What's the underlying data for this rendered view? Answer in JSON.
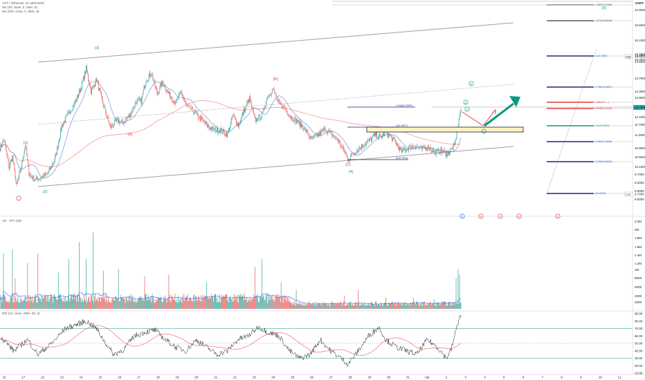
{
  "header": {
    "symbol_line": "APT / TetherUS, 1h, BINANCE",
    "ma1": "MA (20, close, 0, SMA, 9)",
    "ma2": "MA (200, close, 0, SMA, 9)",
    "currency": "USDT",
    "vol_label": "Vol · APT (20)",
    "rsi_label": "RSI (14, close, SMA, 50, 2)"
  },
  "price_axis": {
    "ticks": [
      "16.9000",
      "16.5000",
      "16.1000",
      "15.7000",
      "15.3000",
      "14.9000",
      "14.5000",
      "13.7000",
      "13.3000",
      "12.9000",
      "12.1000",
      "11.7000",
      "11.3000",
      "10.9000",
      "10.5000",
      "10.1000",
      "9.7000",
      "9.3000",
      "8.9000",
      "8.5000"
    ],
    "high_tag": "High",
    "high_value": "14.6237",
    "low_tag": "Low",
    "low_value": "9.7000",
    "last_value": "12.7000"
  },
  "volume_axis": {
    "ticks": [
      "2.2M",
      "2M",
      "1.8M",
      "1.6M",
      "1.4M",
      "1.2M",
      "1M",
      "800K",
      "600K",
      "400K",
      "200K"
    ]
  },
  "rsi_axis": {
    "ticks": [
      "90.00",
      "80.00",
      "70.00",
      "60.00",
      "50.00",
      "40.00",
      "30.00",
      "20.00",
      "10.00"
    ]
  },
  "time_axis": {
    "labels": [
      "16",
      "17",
      "12",
      "13",
      "14",
      "15",
      "16",
      "17",
      "18",
      "19",
      "20",
      "21",
      "22",
      "23",
      "24",
      "25",
      "26",
      "27",
      "28",
      "29",
      "30",
      "31",
      "Apr",
      "2",
      "3",
      "4",
      "5",
      "6",
      "7",
      "8",
      "9",
      "10",
      "11"
    ]
  },
  "fib_right": [
    {
      "label": "1.382(17.1166)",
      "color": "#555555"
    },
    {
      "label": "1.272(16.5616)",
      "color": "#555555"
    },
    {
      "label": "1(14.6286)",
      "color": "#2962ff"
    },
    {
      "label": "0.786(13.3857)",
      "color": "#2962ff"
    },
    {
      "label": "0.65(12.5 ...)",
      "color": "#e53935"
    },
    {
      "label": "0.618(12.2028)",
      "color": "#e53935"
    },
    {
      "label": "0.5(11.9902)",
      "color": "#089981"
    },
    {
      "label": "0.382(11.3838)",
      "color": "#2962ff"
    },
    {
      "label": "0.236(10.6622)",
      "color": "#2962ff"
    },
    {
      "label": "0(9.6025)",
      "color": "#2962ff"
    }
  ],
  "fib_mid": [
    {
      "label": "1.618(12.3997)"
    },
    {
      "label": "1(11.8477)"
    },
    {
      "label": "0(10.7224)"
    }
  ],
  "waves": [
    {
      "label": "i",
      "color": "#e53935",
      "style": "circle"
    },
    {
      "label": "(1)",
      "color": "#089981",
      "style": "plain"
    },
    {
      "label": "(2)",
      "color": "#089981",
      "style": "plain"
    },
    {
      "label": "(3)",
      "color": "#089981",
      "style": "plain"
    },
    {
      "label": "(A)",
      "color": "#e53935",
      "style": "plain"
    },
    {
      "label": "(B)",
      "color": "#e53935",
      "style": "plain"
    },
    {
      "label": "(C)",
      "color": "#e53935",
      "style": "plain"
    },
    {
      "label": "(4)",
      "color": "#089981",
      "style": "plain"
    },
    {
      "label": "i",
      "color": "#089981",
      "style": "circle"
    },
    {
      "label": "ii",
      "color": "#089981",
      "style": "circle"
    },
    {
      "label": "iii",
      "color": "#089981",
      "style": "circle"
    },
    {
      "label": "iv",
      "color": "#089981",
      "style": "circle"
    },
    {
      "label": "v",
      "color": "#089981",
      "style": "circle"
    },
    {
      "label": "(5)",
      "color": "#089981",
      "style": "plain"
    }
  ],
  "event_tags": [
    {
      "label": "D",
      "color": "#2962ff"
    },
    {
      "label": "E",
      "color": "#e53935"
    },
    {
      "label": "E",
      "color": "#e53935"
    },
    {
      "label": "E",
      "color": "#e53935"
    },
    {
      "label": "E",
      "color": "#e53935"
    }
  ],
  "chart_data": [
    {
      "type": "candlestick",
      "title": "APT / TetherUS, 1h, BINANCE",
      "ylim": [
        8.5,
        17.2
      ],
      "colors": {
        "up": "#26a69a",
        "down": "#ef5350",
        "ma20": "#5b7cdd",
        "ma200": "#ef5350"
      },
      "anchors": [
        {
          "i": 0,
          "p": 11.25
        },
        {
          "i": 6,
          "p": 11.6
        },
        {
          "i": 13,
          "p": 10.45
        },
        {
          "i": 18,
          "p": 10.9
        },
        {
          "i": 24,
          "p": 9.65
        },
        {
          "i": 31,
          "p": 10.5
        },
        {
          "i": 37,
          "p": 11.4
        },
        {
          "i": 42,
          "p": 10.2
        },
        {
          "i": 50,
          "p": 9.95
        },
        {
          "i": 58,
          "p": 10.0
        },
        {
          "i": 70,
          "p": 10.2
        },
        {
          "i": 80,
          "p": 10.8
        },
        {
          "i": 90,
          "p": 12.2
        },
        {
          "i": 100,
          "p": 12.7
        },
        {
          "i": 110,
          "p": 13.2
        },
        {
          "i": 118,
          "p": 13.8
        },
        {
          "i": 125,
          "p": 14.55
        },
        {
          "i": 132,
          "p": 13.6
        },
        {
          "i": 140,
          "p": 14.1
        },
        {
          "i": 148,
          "p": 13.2
        },
        {
          "i": 160,
          "p": 12.1
        },
        {
          "i": 170,
          "p": 12.4
        },
        {
          "i": 178,
          "p": 12.3
        },
        {
          "i": 188,
          "p": 12.6
        },
        {
          "i": 198,
          "p": 13.2
        },
        {
          "i": 205,
          "p": 13.2
        },
        {
          "i": 212,
          "p": 14.1
        },
        {
          "i": 220,
          "p": 14.35
        },
        {
          "i": 228,
          "p": 13.5
        },
        {
          "i": 236,
          "p": 14.0
        },
        {
          "i": 245,
          "p": 13.5
        },
        {
          "i": 255,
          "p": 13.1
        },
        {
          "i": 263,
          "p": 13.6
        },
        {
          "i": 270,
          "p": 13.0
        },
        {
          "i": 280,
          "p": 12.8
        },
        {
          "i": 290,
          "p": 12.5
        },
        {
          "i": 300,
          "p": 12.2
        },
        {
          "i": 310,
          "p": 12.0
        },
        {
          "i": 320,
          "p": 12.0
        },
        {
          "i": 330,
          "p": 11.8
        },
        {
          "i": 338,
          "p": 12.6
        },
        {
          "i": 346,
          "p": 12.2
        },
        {
          "i": 354,
          "p": 12.8
        },
        {
          "i": 362,
          "p": 13.3
        },
        {
          "i": 370,
          "p": 12.4
        },
        {
          "i": 380,
          "p": 12.6
        },
        {
          "i": 388,
          "p": 13.4
        },
        {
          "i": 396,
          "p": 13.7
        },
        {
          "i": 404,
          "p": 13.1
        },
        {
          "i": 412,
          "p": 12.95
        },
        {
          "i": 422,
          "p": 12.55
        },
        {
          "i": 432,
          "p": 12.35
        },
        {
          "i": 442,
          "p": 12.05
        },
        {
          "i": 452,
          "p": 11.6
        },
        {
          "i": 462,
          "p": 11.8
        },
        {
          "i": 472,
          "p": 12.05
        },
        {
          "i": 480,
          "p": 11.85
        },
        {
          "i": 490,
          "p": 11.6
        },
        {
          "i": 500,
          "p": 11.1
        },
        {
          "i": 506,
          "p": 10.75
        },
        {
          "i": 512,
          "p": 11.0
        },
        {
          "i": 520,
          "p": 11.2
        },
        {
          "i": 528,
          "p": 11.4
        },
        {
          "i": 536,
          "p": 11.55
        },
        {
          "i": 545,
          "p": 11.8
        },
        {
          "i": 552,
          "p": 11.7
        },
        {
          "i": 560,
          "p": 11.9
        },
        {
          "i": 566,
          "p": 11.75
        },
        {
          "i": 574,
          "p": 11.5
        },
        {
          "i": 582,
          "p": 11.1
        },
        {
          "i": 592,
          "p": 11.25
        },
        {
          "i": 602,
          "p": 11.35
        },
        {
          "i": 612,
          "p": 11.2
        },
        {
          "i": 622,
          "p": 11.3
        },
        {
          "i": 632,
          "p": 11.05
        },
        {
          "i": 640,
          "p": 11.15
        },
        {
          "i": 648,
          "p": 11.0
        },
        {
          "i": 655,
          "p": 11.2
        },
        {
          "i": 660,
          "p": 11.35
        },
        {
          "i": 663,
          "p": 11.9
        },
        {
          "i": 666,
          "p": 12.4
        },
        {
          "i": 668,
          "p": 12.75
        }
      ]
    },
    {
      "type": "bar",
      "title": "Vol · APT (20)",
      "ylim": [
        0,
        2300000
      ],
      "colors": {
        "up": "#26a69a",
        "down": "#ef5350",
        "ma": "#2962ff"
      },
      "spikes": [
        {
          "i": 5,
          "v": 1450000
        },
        {
          "i": 18,
          "v": 1550000
        },
        {
          "i": 22,
          "v": 800000
        },
        {
          "i": 40,
          "v": 1200000
        },
        {
          "i": 55,
          "v": 1450000
        },
        {
          "i": 85,
          "v": 950000
        },
        {
          "i": 100,
          "v": 1300000
        },
        {
          "i": 115,
          "v": 1750000
        },
        {
          "i": 125,
          "v": 1300000
        },
        {
          "i": 135,
          "v": 2000000
        },
        {
          "i": 150,
          "v": 1000000
        },
        {
          "i": 172,
          "v": 1050000
        },
        {
          "i": 210,
          "v": 850000
        },
        {
          "i": 245,
          "v": 900000
        },
        {
          "i": 300,
          "v": 700000
        },
        {
          "i": 370,
          "v": 1100000
        },
        {
          "i": 380,
          "v": 1300000
        },
        {
          "i": 408,
          "v": 700000
        },
        {
          "i": 430,
          "v": 500000
        },
        {
          "i": 500,
          "v": 350000
        },
        {
          "i": 520,
          "v": 500000
        },
        {
          "i": 560,
          "v": 300000
        },
        {
          "i": 600,
          "v": 300000
        },
        {
          "i": 630,
          "v": 250000
        },
        {
          "i": 662,
          "v": 800000
        },
        {
          "i": 665,
          "v": 1050000
        },
        {
          "i": 667,
          "v": 900000
        }
      ]
    },
    {
      "type": "line",
      "title": "RSI (14, close, SMA, 50, 2)",
      "ylim": [
        10,
        90
      ],
      "levels": [
        70,
        50,
        30
      ],
      "colors": {
        "rsi": "#131722",
        "ma": "#ef5350",
        "band": "#089981"
      },
      "anchors": [
        {
          "i": 0,
          "v": 60
        },
        {
          "i": 20,
          "v": 40
        },
        {
          "i": 40,
          "v": 55
        },
        {
          "i": 55,
          "v": 35
        },
        {
          "i": 75,
          "v": 50
        },
        {
          "i": 95,
          "v": 70
        },
        {
          "i": 110,
          "v": 75
        },
        {
          "i": 125,
          "v": 80
        },
        {
          "i": 140,
          "v": 70
        },
        {
          "i": 150,
          "v": 55
        },
        {
          "i": 165,
          "v": 35
        },
        {
          "i": 180,
          "v": 42
        },
        {
          "i": 195,
          "v": 60
        },
        {
          "i": 210,
          "v": 65
        },
        {
          "i": 225,
          "v": 68
        },
        {
          "i": 240,
          "v": 55
        },
        {
          "i": 255,
          "v": 45
        },
        {
          "i": 270,
          "v": 40
        },
        {
          "i": 285,
          "v": 55
        },
        {
          "i": 300,
          "v": 45
        },
        {
          "i": 315,
          "v": 35
        },
        {
          "i": 330,
          "v": 40
        },
        {
          "i": 345,
          "v": 55
        },
        {
          "i": 360,
          "v": 60
        },
        {
          "i": 375,
          "v": 72
        },
        {
          "i": 390,
          "v": 65
        },
        {
          "i": 405,
          "v": 60
        },
        {
          "i": 420,
          "v": 40
        },
        {
          "i": 435,
          "v": 30
        },
        {
          "i": 450,
          "v": 35
        },
        {
          "i": 465,
          "v": 55
        },
        {
          "i": 480,
          "v": 40
        },
        {
          "i": 495,
          "v": 30
        },
        {
          "i": 505,
          "v": 22
        },
        {
          "i": 520,
          "v": 40
        },
        {
          "i": 535,
          "v": 60
        },
        {
          "i": 550,
          "v": 72
        },
        {
          "i": 560,
          "v": 55
        },
        {
          "i": 575,
          "v": 45
        },
        {
          "i": 590,
          "v": 40
        },
        {
          "i": 605,
          "v": 35
        },
        {
          "i": 620,
          "v": 55
        },
        {
          "i": 635,
          "v": 45
        },
        {
          "i": 648,
          "v": 30
        },
        {
          "i": 655,
          "v": 42
        },
        {
          "i": 660,
          "v": 60
        },
        {
          "i": 665,
          "v": 80
        },
        {
          "i": 668,
          "v": 86
        }
      ]
    }
  ]
}
